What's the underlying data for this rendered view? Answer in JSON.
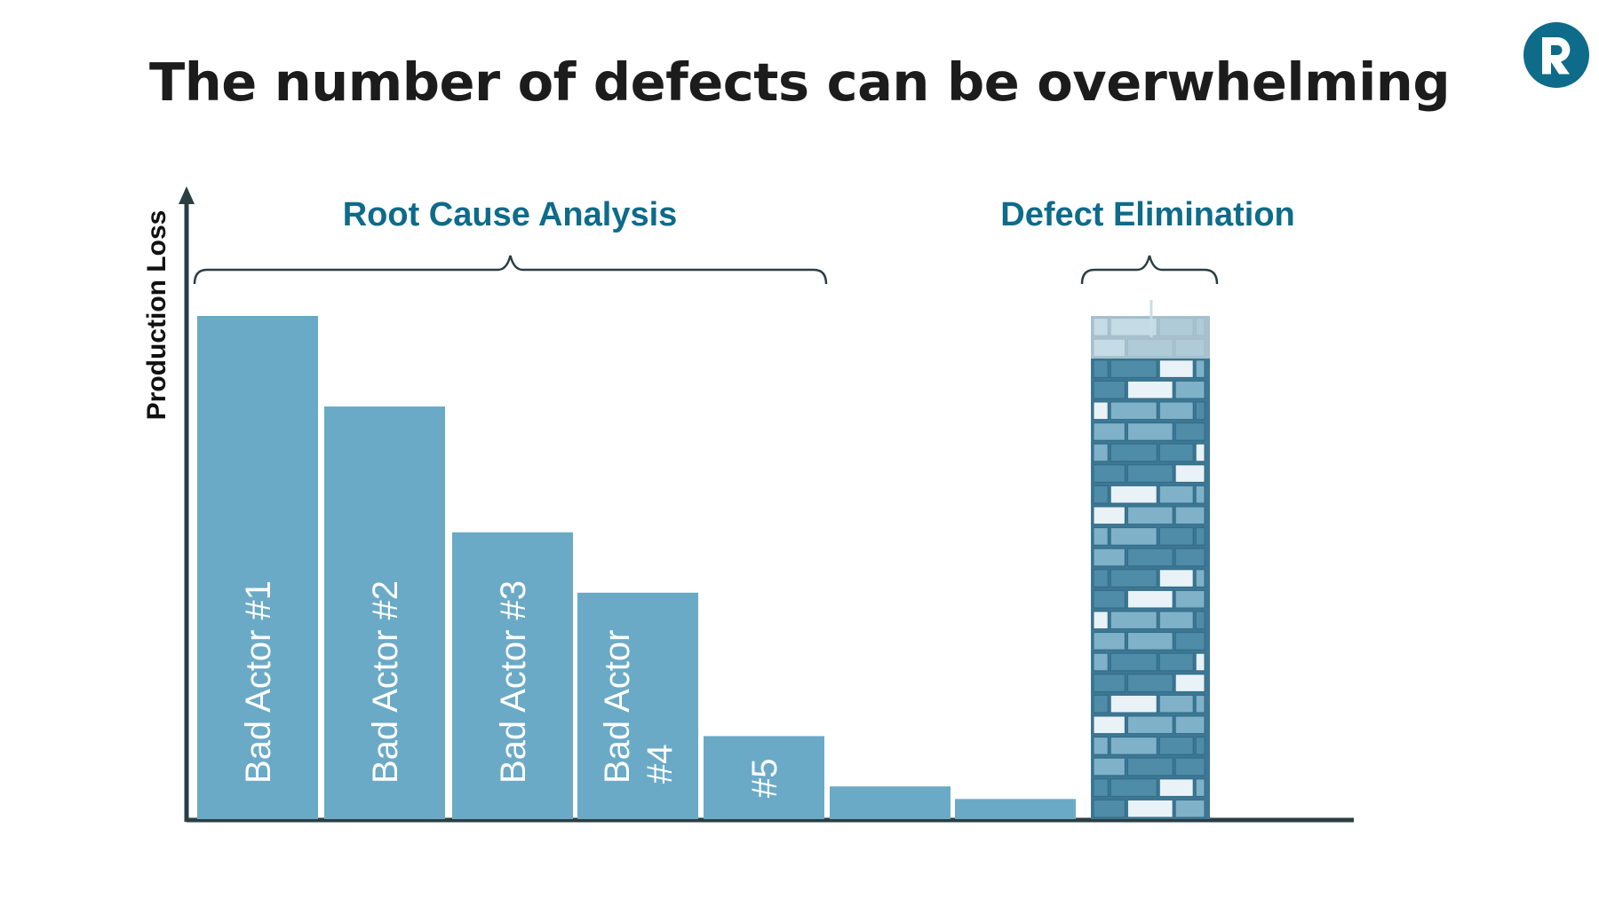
{
  "slide": {
    "title": "The number of defects can be overwhelming",
    "logo_letter": "R"
  },
  "chart_data": {
    "type": "bar",
    "title": "The number of defects can be overwhelming",
    "ylabel": "Production Loss",
    "xlabel": "",
    "categories": [
      "Bad Actor #1",
      "Bad Actor #2",
      "Bad Actor #3",
      "Bad Actor #4",
      "#5",
      "",
      ""
    ],
    "bar_labels": [
      [
        "Bad Actor #1"
      ],
      [
        "Bad Actor #2"
      ],
      [
        "Bad Actor #3"
      ],
      [
        "Bad Actor",
        "#4"
      ],
      [
        "#5"
      ],
      [],
      []
    ],
    "values": [
      100,
      82,
      57,
      45,
      16.5,
      6.5,
      4
    ],
    "ylim": [
      0,
      100
    ],
    "grid": false,
    "annotations": [
      {
        "label": "Root Cause Analysis",
        "spans": "bars 1-7"
      },
      {
        "label": "Defect Elimination",
        "spans": "stacked tower"
      }
    ],
    "tower": {
      "description_icon": "stacked-blocks-tower",
      "value": 100
    }
  },
  "colors": {
    "bar": "#6aaac6",
    "axis": "#2a3e44",
    "accent": "#0e6b8a",
    "title": "#1c1c1c",
    "block_dark": "#4f8ca8",
    "block_mid": "#7fb1c8",
    "block_light": "#e9f2f6"
  },
  "icons": {
    "logo": "brand-r-logo-icon"
  }
}
